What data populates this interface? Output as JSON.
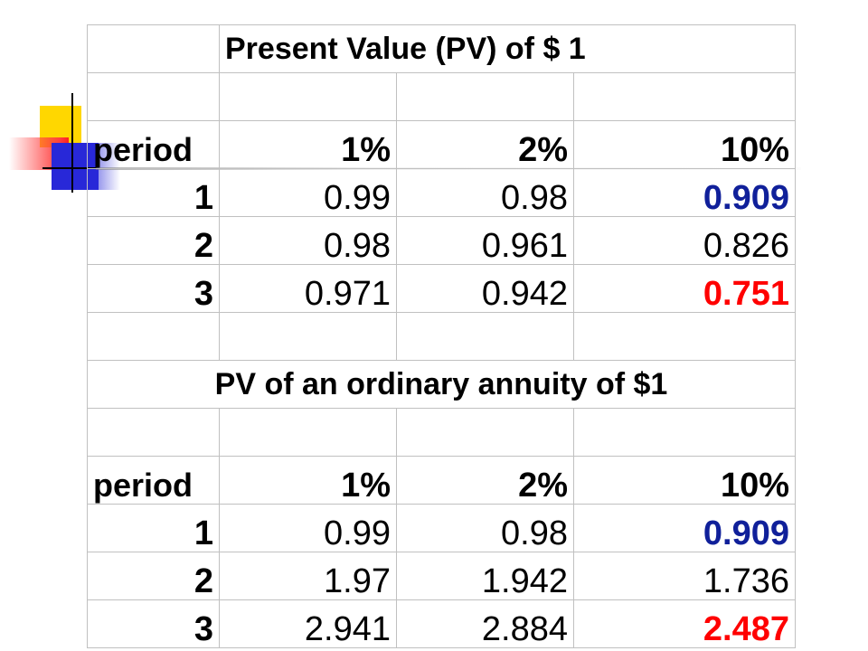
{
  "section1": {
    "title": "Present Value (PV) of $ 1",
    "header": {
      "label": "period",
      "rates": [
        "1%",
        "2%",
        "10%"
      ]
    },
    "rows": [
      {
        "period": "1",
        "values": [
          "0.99",
          "0.98",
          "0.909"
        ]
      },
      {
        "period": "2",
        "values": [
          "0.98",
          "0.961",
          "0.826"
        ]
      },
      {
        "period": "3",
        "values": [
          "0.971",
          "0.942",
          "0.751"
        ]
      }
    ]
  },
  "section2": {
    "title": "PV of an ordinary annuity of $1",
    "header": {
      "label": "period",
      "rates": [
        "1%",
        "2%",
        "10%"
      ]
    },
    "rows": [
      {
        "period": "1",
        "values": [
          "0.99",
          "0.98",
          "0.909"
        ]
      },
      {
        "period": "2",
        "values": [
          "1.97",
          "1.942",
          "1.736"
        ]
      },
      {
        "period": "3",
        "values": [
          "2.941",
          "2.884",
          "2.487"
        ]
      }
    ]
  },
  "colors": {
    "highlight_blue": "#10209a",
    "highlight_red": "#ff0000",
    "grid": "#c0c0c0"
  }
}
